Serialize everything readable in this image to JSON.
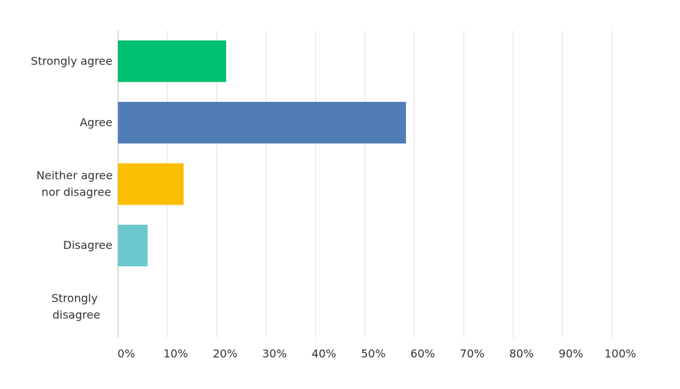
{
  "chart_data": {
    "type": "hbar",
    "categories": [
      "Strongly agree",
      "Agree",
      "Neither agree nor disagree",
      "Disagree",
      "Strongly disagree"
    ],
    "values": [
      21.9,
      58.3,
      13.3,
      6.0,
      0
    ],
    "colors": [
      "#00bf6f",
      "#507cb6",
      "#f9be00",
      "#6bc8cd",
      "#ac5ba3"
    ],
    "xlim": [
      0,
      100
    ],
    "xticks": [
      {
        "value": 0,
        "label": "0%"
      },
      {
        "value": 10,
        "label": "10%"
      },
      {
        "value": 20,
        "label": "20%"
      },
      {
        "value": 30,
        "label": "30%"
      },
      {
        "value": 40,
        "label": "40%"
      },
      {
        "value": 50,
        "label": "50%"
      },
      {
        "value": 60,
        "label": "60%"
      },
      {
        "value": 70,
        "label": "70%"
      },
      {
        "value": 80,
        "label": "80%"
      },
      {
        "value": 90,
        "label": "90%"
      },
      {
        "value": 100,
        "label": "100%"
      }
    ],
    "grid": true
  }
}
